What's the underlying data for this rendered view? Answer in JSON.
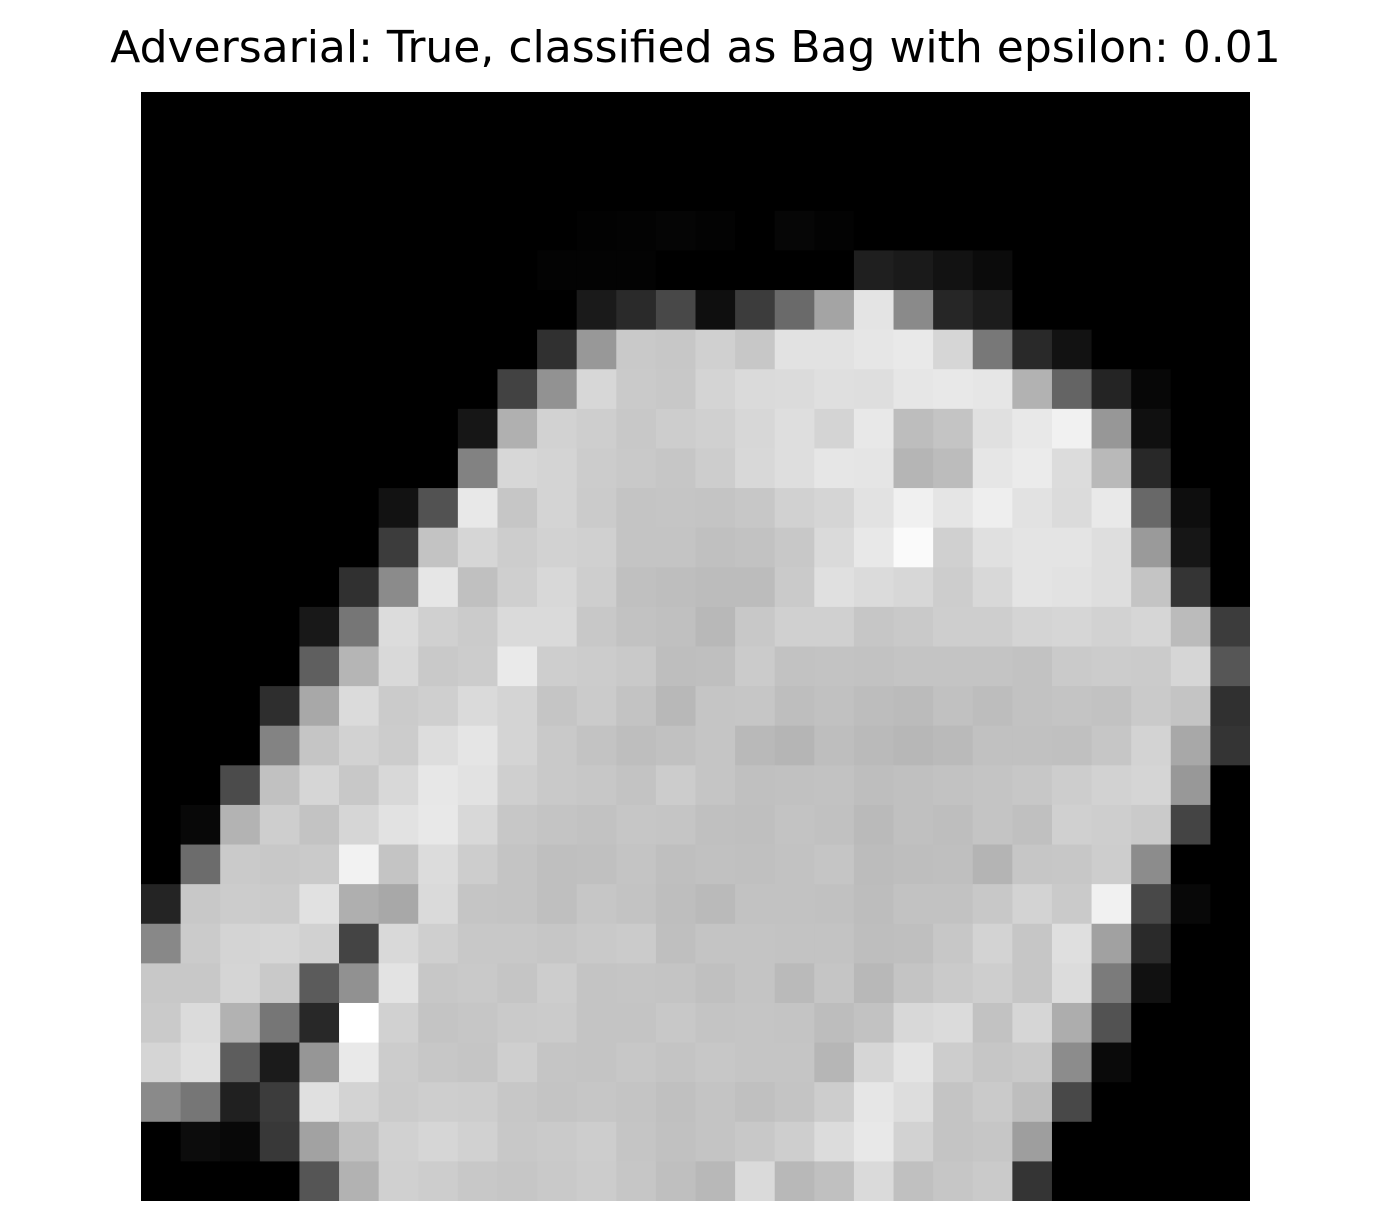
{
  "title": "Adversarial: True, classified as Bag with epsilon: 0.01",
  "chart_data": {
    "type": "heatmap",
    "title": "Adversarial: True, classified as Bag with epsilon: 0.01",
    "colormap": "gray",
    "value_range": [
      0,
      255
    ],
    "axes_visible": false,
    "rows": 28,
    "cols": 28,
    "pixels": [
      [
        0,
        0,
        0,
        0,
        0,
        0,
        0,
        0,
        0,
        0,
        0,
        0,
        0,
        0,
        0,
        0,
        0,
        0,
        0,
        0,
        0,
        0,
        0,
        0,
        0,
        0,
        0,
        0
      ],
      [
        0,
        0,
        0,
        0,
        0,
        0,
        0,
        0,
        0,
        0,
        0,
        0,
        0,
        0,
        0,
        0,
        0,
        0,
        0,
        0,
        0,
        0,
        0,
        0,
        0,
        0,
        0,
        0
      ],
      [
        0,
        0,
        0,
        0,
        0,
        0,
        0,
        0,
        0,
        0,
        0,
        0,
        0,
        0,
        0,
        0,
        0,
        0,
        0,
        0,
        0,
        0,
        0,
        0,
        0,
        0,
        0,
        0
      ],
      [
        0,
        0,
        0,
        0,
        0,
        0,
        0,
        0,
        0,
        0,
        0,
        2,
        3,
        5,
        3,
        0,
        6,
        3,
        0,
        0,
        0,
        0,
        0,
        0,
        0,
        0,
        0,
        0
      ],
      [
        0,
        0,
        0,
        0,
        0,
        0,
        0,
        0,
        0,
        0,
        3,
        3,
        3,
        0,
        0,
        0,
        0,
        0,
        31,
        26,
        18,
        11,
        0,
        0,
        0,
        0,
        0,
        0
      ],
      [
        0,
        0,
        0,
        0,
        0,
        0,
        0,
        0,
        0,
        0,
        0,
        26,
        42,
        72,
        15,
        60,
        106,
        164,
        228,
        138,
        38,
        28,
        0,
        0,
        0,
        0,
        0,
        0
      ],
      [
        0,
        0,
        0,
        0,
        0,
        0,
        0,
        0,
        0,
        0,
        48,
        152,
        201,
        199,
        208,
        199,
        226,
        226,
        230,
        233,
        214,
        120,
        41,
        18,
        0,
        0,
        0,
        0
      ],
      [
        0,
        0,
        0,
        0,
        0,
        0,
        0,
        0,
        0,
        66,
        146,
        215,
        202,
        200,
        212,
        218,
        219,
        223,
        222,
        230,
        232,
        230,
        178,
        100,
        36,
        7,
        0,
        0
      ],
      [
        0,
        0,
        0,
        0,
        0,
        0,
        0,
        0,
        22,
        176,
        210,
        206,
        200,
        205,
        208,
        215,
        222,
        212,
        232,
        189,
        196,
        224,
        232,
        241,
        151,
        16,
        0,
        0
      ],
      [
        0,
        0,
        0,
        0,
        0,
        0,
        0,
        0,
        130,
        215,
        212,
        204,
        201,
        198,
        205,
        216,
        222,
        230,
        229,
        181,
        188,
        230,
        235,
        220,
        185,
        40,
        0,
        0
      ],
      [
        0,
        0,
        0,
        0,
        0,
        0,
        18,
        82,
        232,
        198,
        212,
        203,
        196,
        197,
        196,
        199,
        209,
        213,
        226,
        240,
        229,
        238,
        226,
        219,
        233,
        104,
        14,
        0
      ],
      [
        0,
        0,
        0,
        0,
        0,
        0,
        60,
        195,
        214,
        205,
        210,
        208,
        196,
        196,
        192,
        194,
        200,
        218,
        232,
        250,
        208,
        224,
        228,
        228,
        222,
        154,
        22,
        0
      ],
      [
        0,
        0,
        0,
        0,
        0,
        48,
        139,
        230,
        192,
        207,
        216,
        206,
        192,
        190,
        188,
        188,
        202,
        224,
        219,
        215,
        205,
        216,
        228,
        226,
        222,
        196,
        52,
        0
      ],
      [
        0,
        0,
        0,
        0,
        24,
        118,
        220,
        208,
        203,
        218,
        218,
        200,
        194,
        192,
        184,
        200,
        208,
        208,
        198,
        201,
        206,
        206,
        212,
        214,
        210,
        214,
        187,
        60
      ],
      [
        0,
        0,
        0,
        0,
        95,
        181,
        217,
        201,
        204,
        234,
        206,
        204,
        201,
        190,
        191,
        203,
        194,
        195,
        194,
        196,
        196,
        196,
        194,
        202,
        204,
        203,
        214,
        86
      ],
      [
        0,
        0,
        0,
        46,
        168,
        219,
        203,
        207,
        218,
        212,
        197,
        203,
        195,
        184,
        197,
        198,
        190,
        193,
        189,
        187,
        193,
        189,
        194,
        196,
        194,
        202,
        196,
        48
      ],
      [
        0,
        0,
        0,
        131,
        197,
        210,
        204,
        221,
        229,
        212,
        201,
        195,
        190,
        193,
        197,
        185,
        181,
        190,
        186,
        183,
        186,
        193,
        193,
        192,
        198,
        211,
        168,
        52
      ],
      [
        0,
        0,
        75,
        193,
        214,
        200,
        216,
        231,
        226,
        207,
        201,
        199,
        195,
        204,
        197,
        192,
        193,
        194,
        190,
        192,
        194,
        196,
        199,
        205,
        210,
        213,
        152,
        0
      ],
      [
        0,
        8,
        179,
        206,
        195,
        214,
        226,
        232,
        216,
        199,
        196,
        194,
        198,
        197,
        192,
        191,
        195,
        193,
        186,
        192,
        190,
        196,
        192,
        208,
        206,
        202,
        68,
        0
      ],
      [
        0,
        108,
        202,
        200,
        202,
        242,
        196,
        220,
        205,
        196,
        191,
        192,
        196,
        191,
        193,
        192,
        194,
        197,
        188,
        190,
        191,
        180,
        198,
        199,
        205,
        140,
        0,
        0
      ],
      [
        36,
        200,
        204,
        203,
        225,
        175,
        168,
        218,
        197,
        196,
        191,
        198,
        195,
        190,
        186,
        194,
        194,
        193,
        189,
        194,
        194,
        200,
        211,
        202,
        241,
        72,
        8,
        0
      ],
      [
        136,
        203,
        212,
        214,
        209,
        68,
        217,
        207,
        200,
        200,
        198,
        201,
        203,
        191,
        196,
        196,
        195,
        195,
        190,
        191,
        199,
        211,
        198,
        223,
        161,
        42,
        0,
        0
      ],
      [
        200,
        200,
        213,
        201,
        91,
        145,
        227,
        199,
        201,
        197,
        205,
        196,
        197,
        196,
        192,
        196,
        186,
        197,
        184,
        196,
        202,
        206,
        198,
        220,
        123,
        17,
        0,
        0
      ],
      [
        202,
        219,
        178,
        118,
        40,
        255,
        209,
        196,
        198,
        202,
        203,
        196,
        196,
        200,
        196,
        197,
        196,
        189,
        194,
        216,
        219,
        194,
        214,
        173,
        82,
        0,
        0,
        0
      ],
      [
        213,
        223,
        93,
        27,
        150,
        233,
        204,
        199,
        197,
        207,
        197,
        196,
        199,
        196,
        199,
        197,
        197,
        182,
        214,
        228,
        205,
        198,
        201,
        140,
        10,
        0,
        0,
        0
      ],
      [
        138,
        118,
        32,
        60,
        224,
        211,
        203,
        206,
        205,
        199,
        196,
        198,
        196,
        192,
        196,
        192,
        196,
        205,
        230,
        221,
        196,
        202,
        190,
        72,
        0,
        0,
        0,
        0
      ],
      [
        0,
        12,
        8,
        56,
        162,
        193,
        209,
        214,
        209,
        200,
        202,
        205,
        197,
        193,
        196,
        200,
        206,
        220,
        232,
        210,
        196,
        198,
        158,
        0,
        0,
        0,
        0,
        0
      ],
      [
        0,
        0,
        0,
        0,
        85,
        178,
        208,
        205,
        200,
        198,
        201,
        204,
        198,
        191,
        184,
        218,
        184,
        192,
        218,
        192,
        198,
        202,
        52,
        0,
        0,
        0,
        0,
        0
      ]
    ]
  }
}
